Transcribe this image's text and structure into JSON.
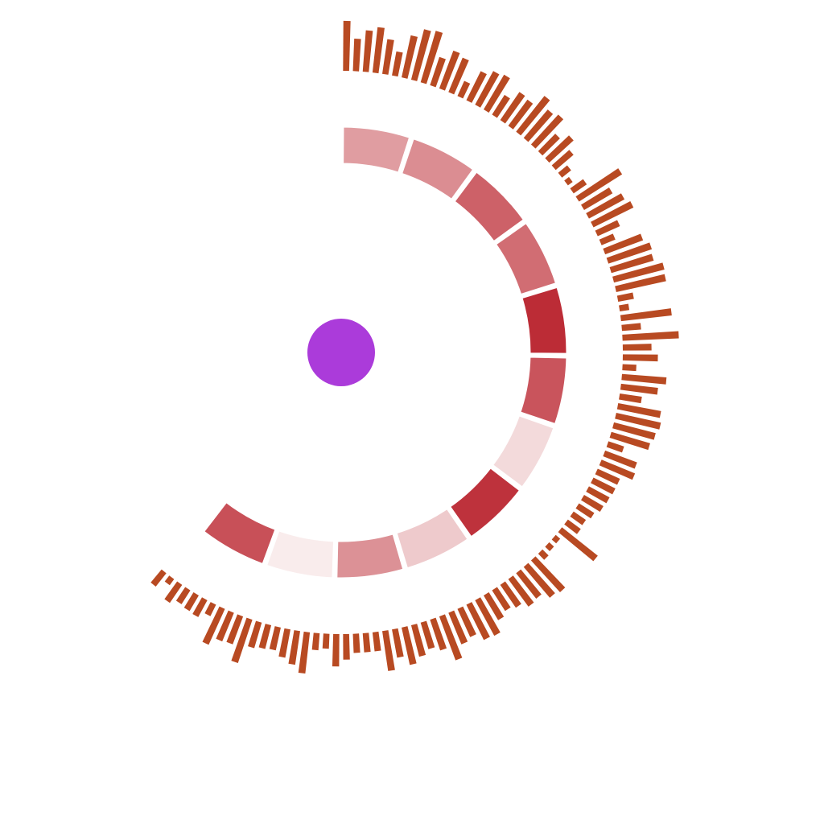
{
  "chart_data": {
    "type": "radial-bar-heatmap",
    "inner_ring": {
      "start_angle_deg": 0,
      "end_angle_deg": 218,
      "sweep_direction": "clockwise-from-12-oclock",
      "gap_deg": 0.8,
      "values": [
        0.42,
        0.5,
        0.72,
        0.66,
        0.98,
        0.78,
        0.12,
        0.95,
        0.2,
        0.48,
        0.03,
        0.8
      ],
      "color_low": "#fbf2f2",
      "color_high": "#bb2832"
    },
    "outer_bars": {
      "start_angle_deg": 0,
      "end_angle_deg": 220,
      "sweep_direction": "clockwise-from-12-oclock",
      "color": "#b84a22",
      "values": [
        0.88,
        0.55,
        0.72,
        0.8,
        0.6,
        0.4,
        0.75,
        0.92,
        0.95,
        0.5,
        0.7,
        0.64,
        0.25,
        0.55,
        0.66,
        0.7,
        0.38,
        0.58,
        0.55,
        0.8,
        0.64,
        0.7,
        0.4,
        0.56,
        0.38,
        0.16,
        0.05,
        0.24,
        0.9,
        0.56,
        0.7,
        0.78,
        0.4,
        0.22,
        0.7,
        0.8,
        0.77,
        0.92,
        0.9,
        0.24,
        0.12,
        0.9,
        0.3,
        1.0,
        0.48,
        0.6,
        0.2,
        0.78,
        0.64,
        0.36,
        0.76,
        0.8,
        0.75,
        0.7,
        0.25,
        0.58,
        0.62,
        0.4,
        0.4,
        0.38,
        0.36,
        0.28,
        0.22,
        0.24,
        0.8,
        0.05,
        0.06,
        0.1,
        0.75,
        0.7,
        0.55,
        0.58,
        0.46,
        0.4,
        0.48,
        0.7,
        0.68,
        0.52,
        0.58,
        0.82,
        0.55,
        0.46,
        0.55,
        0.66,
        0.48,
        0.7,
        0.3,
        0.3,
        0.3,
        0.42,
        0.55,
        0.22,
        0.26,
        0.72,
        0.58,
        0.48,
        0.38,
        0.4,
        0.44,
        0.8,
        0.5,
        0.52,
        0.68,
        0.18,
        0.3,
        0.28,
        0.25,
        0.35,
        0.08,
        0.26
      ]
    },
    "center_dot": {
      "color": "#ab3bda"
    }
  }
}
